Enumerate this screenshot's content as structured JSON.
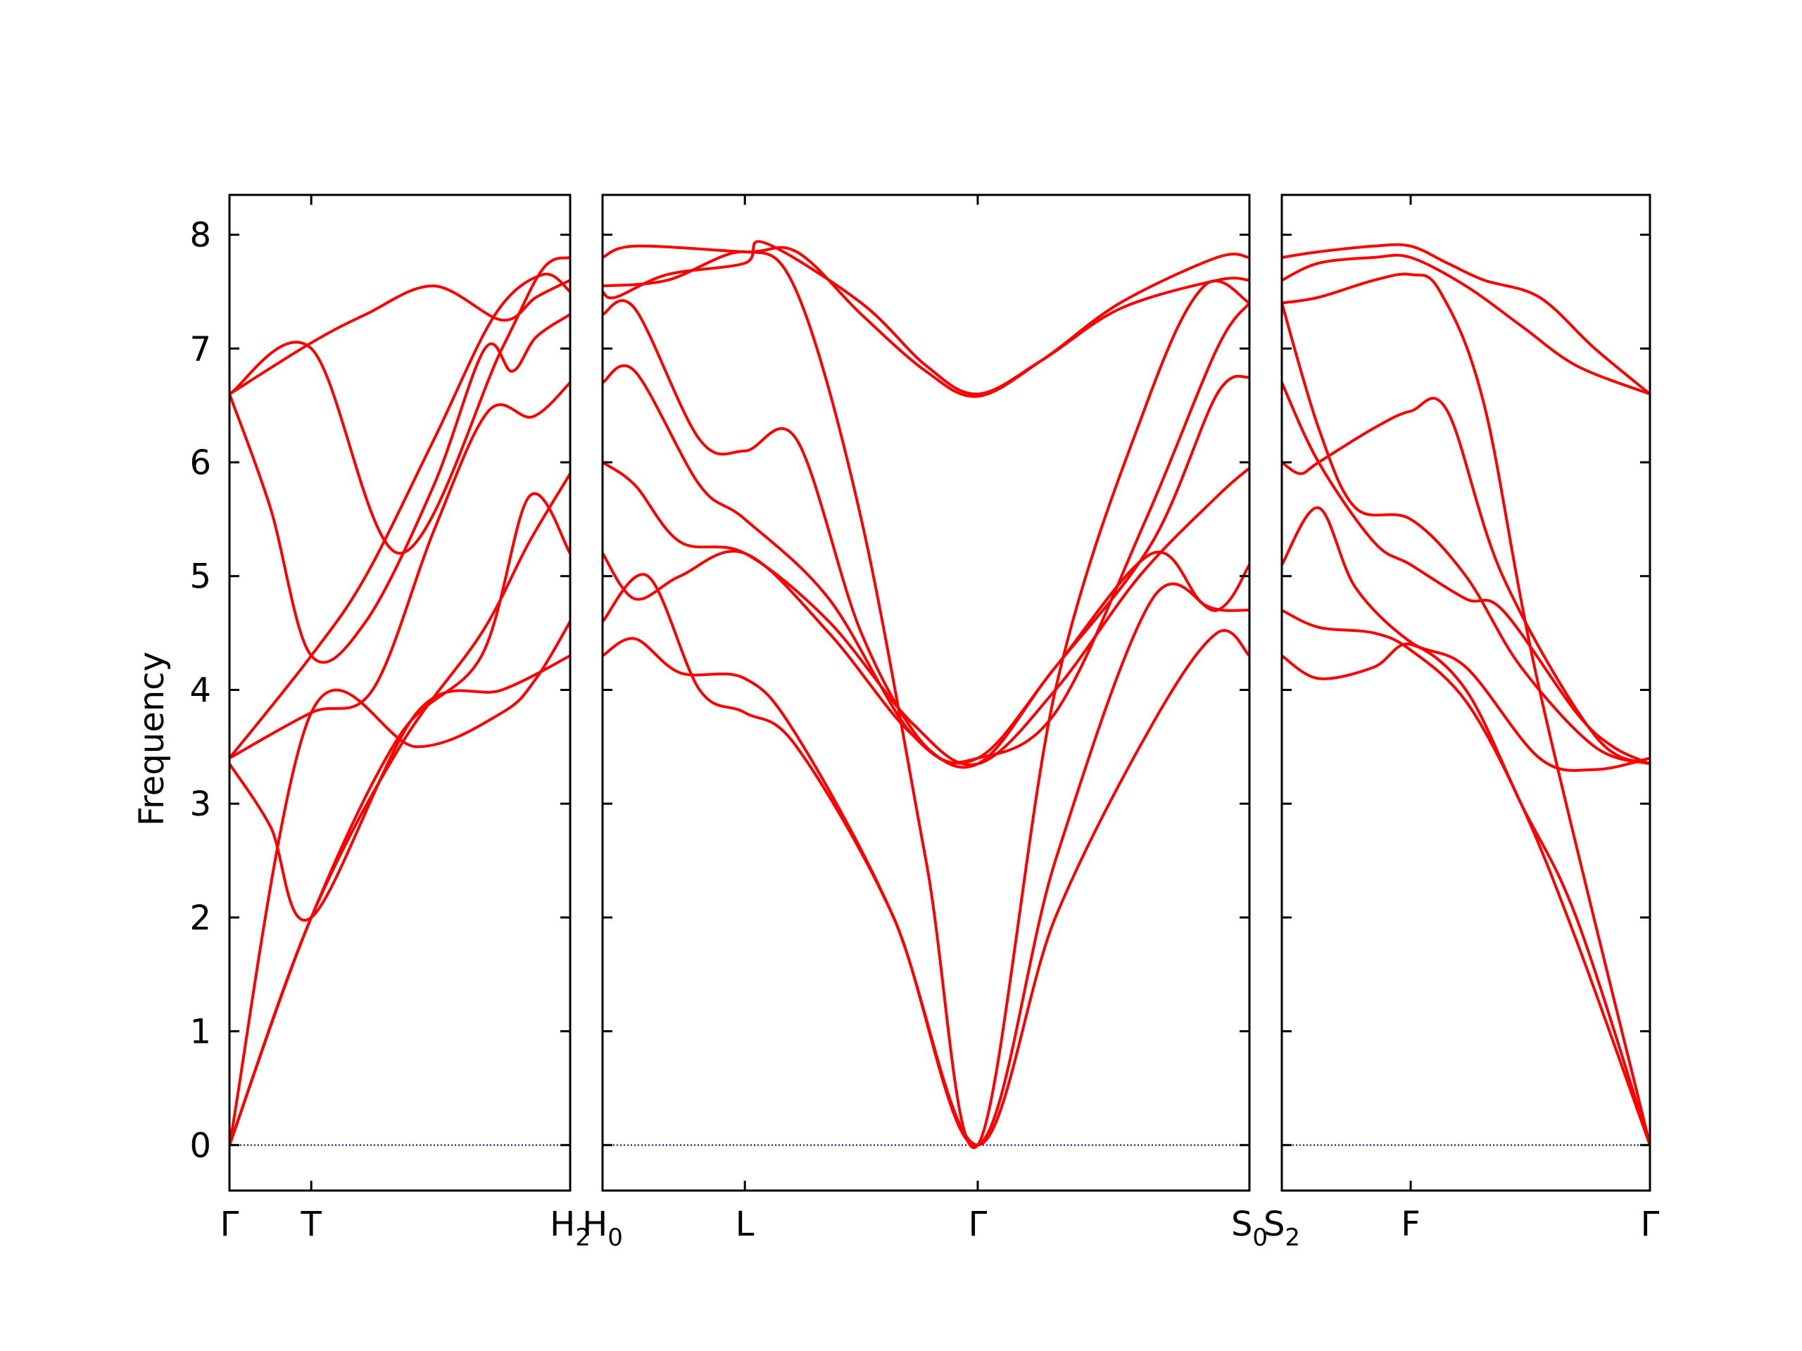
{
  "chart_data": {
    "type": "line",
    "ylabel": "Frequency",
    "ylim": [
      -0.4,
      8.35
    ],
    "yticks": [
      "0",
      "1",
      "2",
      "3",
      "4",
      "5",
      "6",
      "7",
      "8"
    ],
    "colors": {
      "band": "#ff0000",
      "zero_line": "#0000cc",
      "frame": "#000000"
    },
    "zero_line_style": "dotted",
    "grid": false,
    "panels": [
      {
        "xticks": [
          {
            "x": 0.0,
            "label": "Γ",
            "sub": ""
          },
          {
            "x": 0.24,
            "label": "T",
            "sub": ""
          },
          {
            "x": 1.0,
            "label": "H",
            "sub": "2"
          }
        ],
        "bands": [
          {
            "x": [
              0,
              0.24,
              0.5,
              0.74,
              0.88,
              1.0
            ],
            "y": [
              0,
              2.0,
              3.5,
              4.5,
              5.3,
              5.9
            ]
          },
          {
            "x": [
              0,
              0.24,
              0.5,
              0.74,
              0.88,
              1.0
            ],
            "y": [
              0,
              2.0,
              3.6,
              4.3,
              5.7,
              5.2
            ]
          },
          {
            "x": [
              0,
              0.12,
              0.24,
              0.55,
              0.8,
              1.0
            ],
            "y": [
              3.35,
              2.8,
              2.0,
              3.8,
              4.0,
              4.3
            ]
          },
          {
            "x": [
              0,
              0.24,
              0.55,
              0.8,
              0.9,
              1.0
            ],
            "y": [
              0,
              3.8,
              3.5,
              3.8,
              4.1,
              4.6
            ]
          },
          {
            "x": [
              0,
              0.24,
              0.42,
              0.6,
              0.76,
              0.89,
              1.0
            ],
            "y": [
              3.4,
              3.8,
              4.0,
              5.4,
              6.45,
              6.4,
              6.7
            ]
          },
          {
            "x": [
              0,
              0.12,
              0.24,
              0.4,
              0.6,
              0.75,
              0.83,
              0.9,
              1.0
            ],
            "y": [
              6.6,
              5.6,
              4.3,
              4.6,
              5.8,
              7.0,
              6.8,
              7.1,
              7.3
            ]
          },
          {
            "x": [
              0,
              0.24,
              0.4,
              0.6,
              0.8,
              0.9,
              1.0
            ],
            "y": [
              6.6,
              7.05,
              7.3,
              7.55,
              7.25,
              7.45,
              7.6
            ]
          },
          {
            "x": [
              0,
              0.24,
              0.4,
              0.6,
              0.78,
              0.92,
              1.0
            ],
            "y": [
              3.4,
              4.3,
              5.0,
              6.2,
              7.3,
              7.65,
              7.5
            ]
          },
          {
            "x": [
              0,
              0.24,
              0.5,
              0.8,
              0.92,
              1.0
            ],
            "y": [
              6.6,
              7.0,
              5.2,
              7.0,
              7.7,
              7.8
            ]
          }
        ]
      },
      {
        "xticks": [
          {
            "x": 0.0,
            "label": "H",
            "sub": "0"
          },
          {
            "x": 0.22,
            "label": "L",
            "sub": ""
          },
          {
            "x": 0.58,
            "label": "Γ",
            "sub": ""
          },
          {
            "x": 1.0,
            "label": "S",
            "sub": "0"
          }
        ],
        "bands": [
          {
            "x": [
              0,
              0.05,
              0.12,
              0.22,
              0.3,
              0.45,
              0.58,
              0.7,
              0.85,
              0.95,
              1.0
            ],
            "y": [
              4.3,
              4.45,
              4.15,
              4.1,
              3.6,
              2.0,
              0.0,
              2.0,
              3.7,
              4.5,
              4.3
            ]
          },
          {
            "x": [
              0,
              0.07,
              0.15,
              0.22,
              0.3,
              0.45,
              0.58,
              0.7,
              0.85,
              0.95,
              1.0
            ],
            "y": [
              4.6,
              5.0,
              4.0,
              3.8,
              3.5,
              2.0,
              0.0,
              2.5,
              4.8,
              4.7,
              5.1
            ]
          },
          {
            "x": [
              0,
              0.05,
              0.12,
              0.22,
              0.35,
              0.48,
              0.58,
              0.7,
              0.85,
              0.93,
              1.0
            ],
            "y": [
              5.2,
              4.8,
              5.0,
              5.2,
              4.5,
              3.6,
              3.35,
              4.2,
              5.2,
              4.75,
              4.7
            ]
          },
          {
            "x": [
              0,
              0.05,
              0.12,
              0.22,
              0.35,
              0.48,
              0.58,
              0.7,
              0.83,
              0.95,
              1.0
            ],
            "y": [
              6.0,
              5.8,
              5.3,
              5.2,
              4.6,
              3.7,
              3.35,
              4.0,
              5.0,
              5.7,
              5.95
            ]
          },
          {
            "x": [
              0,
              0.05,
              0.15,
              0.22,
              0.35,
              0.48,
              0.58,
              0.7,
              0.85,
              0.95,
              1.0
            ],
            "y": [
              6.7,
              6.8,
              5.8,
              5.5,
              4.8,
              3.6,
              3.4,
              4.2,
              5.3,
              6.6,
              6.75
            ]
          },
          {
            "x": [
              0,
              0.05,
              0.15,
              0.22,
              0.3,
              0.4,
              0.5,
              0.58,
              0.7,
              0.84,
              0.95,
              1.0
            ],
            "y": [
              7.3,
              7.35,
              6.2,
              6.1,
              6.2,
              4.5,
              3.5,
              3.4,
              3.8,
              5.5,
              7.0,
              7.4
            ]
          },
          {
            "x": [
              0,
              0.1,
              0.22,
              0.3,
              0.4,
              0.5,
              0.58,
              0.7,
              0.84,
              0.93,
              1.0
            ],
            "y": [
              7.55,
              7.6,
              7.85,
              7.5,
              5.5,
              2.5,
              0.0,
              4.0,
              6.5,
              7.55,
              7.4
            ]
          },
          {
            "x": [
              0,
              0.05,
              0.22,
              0.3,
              0.4,
              0.5,
              0.58,
              0.68,
              0.8,
              0.95,
              1.0
            ],
            "y": [
              7.8,
              7.9,
              7.85,
              7.85,
              7.3,
              6.8,
              6.58,
              6.9,
              7.4,
              7.8,
              7.8
            ]
          },
          {
            "x": [
              0,
              0.02,
              0.1,
              0.22,
              0.25,
              0.4,
              0.5,
              0.58,
              0.68,
              0.8,
              0.95,
              1.0
            ],
            "y": [
              7.5,
              7.45,
              7.65,
              7.75,
              7.93,
              7.4,
              6.85,
              6.6,
              6.9,
              7.35,
              7.6,
              7.6
            ]
          }
        ]
      },
      {
        "xticks": [
          {
            "x": 0.0,
            "label": "S",
            "sub": "2"
          },
          {
            "x": 0.35,
            "label": "F",
            "sub": ""
          },
          {
            "x": 1.0,
            "label": "Γ",
            "sub": ""
          }
        ],
        "bands": [
          {
            "x": [
              0,
              0.1,
              0.25,
              0.35,
              0.5,
              0.65,
              0.8,
              1.0
            ],
            "y": [
              4.3,
              4.1,
              4.2,
              4.4,
              4.0,
              3.0,
              2.0,
              0.0
            ]
          },
          {
            "x": [
              0,
              0.1,
              0.25,
              0.35,
              0.5,
              0.65,
              0.8,
              1.0
            ],
            "y": [
              4.7,
              4.55,
              4.5,
              4.35,
              3.9,
              3.0,
              1.8,
              0.0
            ]
          },
          {
            "x": [
              0,
              0.1,
              0.2,
              0.35,
              0.5,
              0.7,
              0.85,
              1.0
            ],
            "y": [
              5.1,
              5.6,
              4.9,
              4.42,
              4.2,
              3.4,
              3.3,
              3.4
            ]
          },
          {
            "x": [
              0,
              0.1,
              0.25,
              0.35,
              0.5,
              0.6,
              0.8,
              0.9,
              1.0
            ],
            "y": [
              6.7,
              6.0,
              5.3,
              5.1,
              4.8,
              4.7,
              3.8,
              3.5,
              3.35
            ]
          },
          {
            "x": [
              0,
              0.05,
              0.1,
              0.25,
              0.35,
              0.45,
              0.6,
              0.85,
              1.0
            ],
            "y": [
              6.0,
              5.9,
              6.0,
              6.3,
              6.45,
              6.45,
              5.0,
              3.6,
              3.35
            ]
          },
          {
            "x": [
              0,
              0.1,
              0.2,
              0.35,
              0.5,
              0.65,
              0.85,
              1.0
            ],
            "y": [
              7.4,
              6.3,
              5.6,
              5.5,
              5.0,
              4.2,
              3.5,
              3.35
            ]
          },
          {
            "x": [
              0,
              0.1,
              0.25,
              0.35,
              0.43,
              0.55,
              0.7,
              1.0
            ],
            "y": [
              7.4,
              7.45,
              7.6,
              7.65,
              7.5,
              6.5,
              4.0,
              0.0
            ]
          },
          {
            "x": [
              0,
              0.1,
              0.25,
              0.35,
              0.5,
              0.65,
              0.8,
              1.0
            ],
            "y": [
              7.6,
              7.75,
              7.8,
              7.8,
              7.55,
              7.2,
              6.85,
              6.6
            ]
          },
          {
            "x": [
              0,
              0.1,
              0.25,
              0.35,
              0.45,
              0.55,
              0.7,
              0.85,
              1.0
            ],
            "y": [
              7.8,
              7.85,
              7.9,
              7.9,
              7.75,
              7.6,
              7.45,
              7.0,
              6.6
            ]
          }
        ]
      }
    ]
  }
}
